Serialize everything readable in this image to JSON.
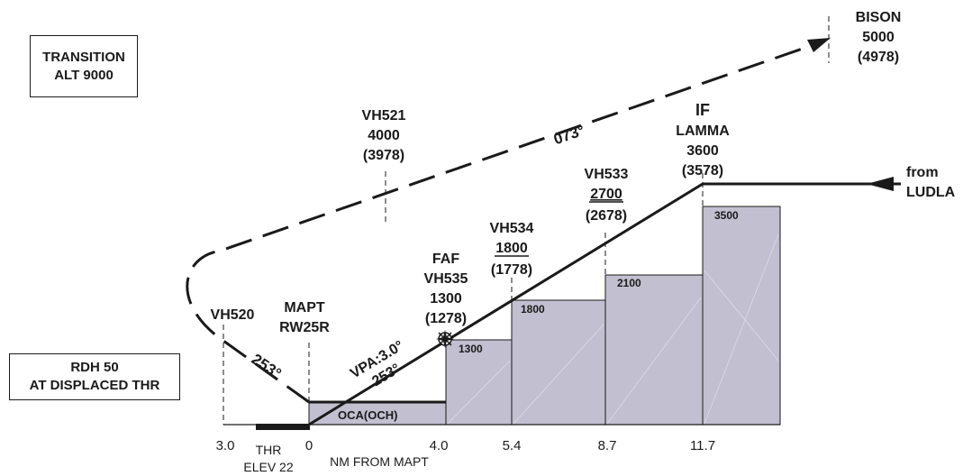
{
  "transition_box": {
    "line1": "TRANSITION",
    "line2": "ALT 9000"
  },
  "rdh_box": {
    "line1": "RDH 50",
    "line2": "AT DISPLACED THR"
  },
  "bison": {
    "name": "BISON",
    "alt": "5000",
    "height": "(4978)"
  },
  "vh521": {
    "name": "VH521",
    "alt": "4000",
    "height": "(3978)"
  },
  "outbound_track": "073°",
  "if_lamma": {
    "role": "IF",
    "name": "LAMMA",
    "alt": "3600",
    "height": "(3578)"
  },
  "vh533": {
    "name": "VH533",
    "alt": "2700",
    "height": "(2678)"
  },
  "vh534": {
    "name": "VH534",
    "alt": "1800",
    "height": "(1778)"
  },
  "faf": {
    "role": "FAF",
    "name": "VH535",
    "alt": "1300",
    "height": "(1278)"
  },
  "from_ludla": {
    "line1": "from",
    "line2": "LUDLA"
  },
  "vh520": {
    "name": "VH520"
  },
  "mapt": {
    "line1": "MAPT",
    "line2": "RW25R"
  },
  "missed_track": "253°",
  "vpa": {
    "angle": "VPA:3.0°",
    "track": "253°"
  },
  "oca_label": "OCA(OCH)",
  "step_values": [
    "1300",
    "1800",
    "2100",
    "3500"
  ],
  "distances": [
    "3.0",
    "0",
    "4.0",
    "5.4",
    "8.7",
    "11.7"
  ],
  "thr": {
    "line1": "THR",
    "line2": "ELEV 22"
  },
  "nm_from_mapt": "NM FROM MAPT",
  "colors": {
    "ink": "#1a1a1a",
    "step_fill": "#c2bfd0"
  }
}
